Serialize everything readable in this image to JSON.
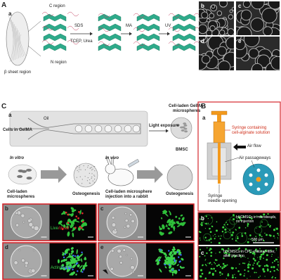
{
  "panel_A": {
    "label": "A",
    "sub_a": "a",
    "c_region": "C region",
    "n_region": "N region",
    "sds": "SDS",
    "reagents": "TCEP, Urea",
    "ma": "MA",
    "uv": "UV",
    "beta": "β sheet region",
    "micrographs": [
      "b",
      "c",
      "d",
      "e"
    ]
  },
  "panel_C": {
    "label": "C",
    "sub_a": "a",
    "cells_in_gelma": "Cells in GelMA",
    "oil": "Oil",
    "light": "Light exposure",
    "microspheres": [
      "Cell-laden GelMA",
      "microspheres"
    ],
    "bmsc": "BMSC",
    "in_vitro": "In vitro",
    "in_vivo": "In vivo",
    "cell_laden": [
      "Cell-laden",
      "microspheres"
    ],
    "osteo1": "Osteogenesis",
    "injection": [
      "Cell-laden microsphere",
      "injection into a rabbit"
    ],
    "osteo2": "Osteogenesis",
    "panels": [
      "b",
      "c",
      "d",
      "e"
    ],
    "live": "Live",
    "dead": "/dead",
    "actin": "Actin/",
    "nuclei": "nuclei"
  },
  "panel_B": {
    "label": "B",
    "sub_a": "a",
    "syringe": [
      "Syringe containing",
      "cell-alginate solution"
    ],
    "air_flow": "Air flow",
    "air_pass": "Air passageways",
    "needle": [
      "Syringe",
      "needle opening"
    ],
    "sub_b": "b",
    "b_caption": [
      "hUCMSCs in microbeads,",
      "no injection"
    ],
    "scale": "500 μm",
    "sub_c": "c",
    "c_caption": [
      "hUCMSCs in CPC-chitosan-fiber,",
      "after injection"
    ]
  }
}
